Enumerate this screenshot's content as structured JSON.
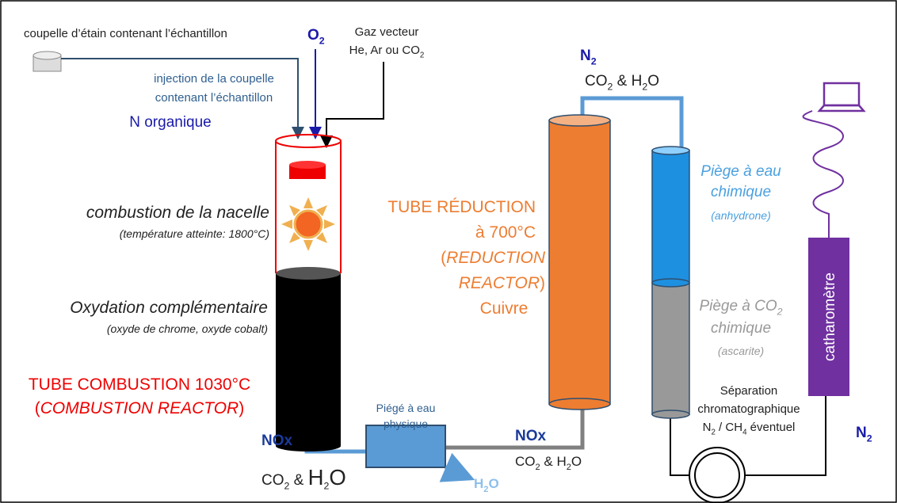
{
  "labels": {
    "sample_cup": [
      {
        "text": "coupelle d’étain contenant l’échantillon"
      }
    ],
    "injection_1": [
      {
        "text": "injection de la coupelle"
      }
    ],
    "injection_2": [
      {
        "text": "contenant l’échantillon"
      }
    ],
    "n_organic": [
      {
        "text": "N organique"
      }
    ],
    "o2": [
      {
        "text": "O"
      },
      {
        "sub": "2"
      }
    ],
    "carrier_1": [
      {
        "text": "Gaz vecteur"
      }
    ],
    "carrier_2": [
      {
        "text": "He, Ar ou CO"
      },
      {
        "sub": "2"
      }
    ],
    "nacelle_1": [
      {
        "text": "combustion de la nacelle"
      }
    ],
    "nacelle_2": [
      {
        "text": "(température atteinte: 1800°C)"
      }
    ],
    "oxidation_1": [
      {
        "text": "Oxydation complémentaire"
      }
    ],
    "oxidation_2": [
      {
        "text": "(oxyde de chrome, oxyde cobalt)"
      }
    ],
    "combustion_1": [
      {
        "text": "TUBE COMBUSTION 1030°C"
      }
    ],
    "combustion_2": [
      {
        "text": "("
      },
      {
        "italic": "COMBUSTION REACTOR"
      },
      {
        "text": ")"
      }
    ],
    "nox_1": [
      {
        "text": "NOx"
      }
    ],
    "gas_1": [
      {
        "text": "CO"
      },
      {
        "sub": "2"
      },
      {
        "text": " & "
      },
      {
        "big": "H"
      },
      {
        "sub": "2"
      },
      {
        "big": "O"
      }
    ],
    "physical_trap_1": [
      {
        "text": "Piégé à eau"
      }
    ],
    "physical_trap_2": [
      {
        "text": "physique"
      }
    ],
    "h2o_out": [
      {
        "text": "H"
      },
      {
        "sub": "2"
      },
      {
        "text": "O"
      }
    ],
    "nox_2": [
      {
        "text": "NOx"
      }
    ],
    "gas_2": [
      {
        "text": "CO"
      },
      {
        "sub": "2"
      },
      {
        "text": " & H"
      },
      {
        "sub": "2"
      },
      {
        "text": "O"
      }
    ],
    "reduction_1": [
      {
        "text": "TUBE RÉDUCTION"
      }
    ],
    "reduction_2": [
      {
        "text": "à 700°C"
      }
    ],
    "reduction_3": [
      {
        "text": "("
      },
      {
        "italic": "REDUCTION"
      }
    ],
    "reduction_4": [
      {
        "italic": "REACTOR"
      },
      {
        "text": ")"
      }
    ],
    "reduction_5": [
      {
        "text": "Cuivre"
      }
    ],
    "n2_top": [
      {
        "text": "N"
      },
      {
        "sub": "2"
      }
    ],
    "gas_3": [
      {
        "text": "CO"
      },
      {
        "sub": "2"
      },
      {
        "text": " & H"
      },
      {
        "sub": "2"
      },
      {
        "text": "O"
      }
    ],
    "water_trap_1": [
      {
        "text": "Piège à eau"
      }
    ],
    "water_trap_2": [
      {
        "text": "chimique"
      }
    ],
    "water_trap_3": [
      {
        "text": "(anhydrone)"
      }
    ],
    "co2_trap_1": [
      {
        "text": "Piège à CO"
      },
      {
        "sub": "2"
      }
    ],
    "co2_trap_2": [
      {
        "text": "chimique"
      }
    ],
    "co2_trap_3": [
      {
        "text": "(ascarite)"
      }
    ],
    "catharometer": [
      {
        "text": "catharomètre"
      }
    ],
    "separation_1": [
      {
        "text": "Séparation"
      }
    ],
    "separation_2": [
      {
        "text": "chromatographique"
      }
    ],
    "separation_3": [
      {
        "text": "N"
      },
      {
        "sub": "2"
      },
      {
        "text": " / CH"
      },
      {
        "sub": "4"
      },
      {
        "text": " éventuel"
      }
    ],
    "n2_right": [
      {
        "text": "N"
      },
      {
        "sub": "2"
      }
    ]
  }
}
